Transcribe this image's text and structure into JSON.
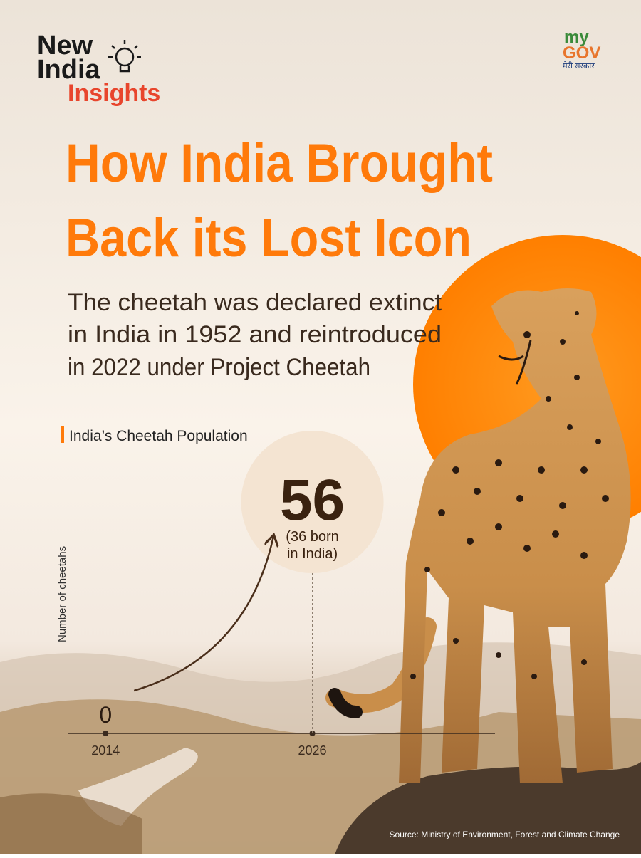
{
  "brand": {
    "line1": "New",
    "line2": "India",
    "line3": "Insights"
  },
  "partner": {
    "logo_my": "my",
    "logo_gov": "GOV",
    "tagline": "मेरी सरकार"
  },
  "headline": {
    "line1": "How India Brought",
    "line2": "Back its Lost Icon"
  },
  "subtitle": {
    "line1": "The cheetah was declared extinct",
    "line2": "in India in 1952 and reintroduced",
    "line3": "in 2022 under Project Cheetah"
  },
  "chart_data": {
    "type": "line",
    "title": "India’s Cheetah Population",
    "y_label": "Number of cheetahs",
    "x": [
      2014,
      2026
    ],
    "xlim": [
      2011.8,
      2036.6
    ],
    "xticks": [
      2014,
      2026
    ],
    "ylim": [
      0,
      56
    ],
    "series": [
      {
        "name": "Cheetahs",
        "color": "#4a2e1a",
        "values": [
          0,
          56
        ],
        "value_labels": [
          "0",
          "56"
        ]
      }
    ],
    "annotation": "(36 born in India)"
  },
  "source": "Source: Ministry of Environment, Forest and Climate Change"
}
